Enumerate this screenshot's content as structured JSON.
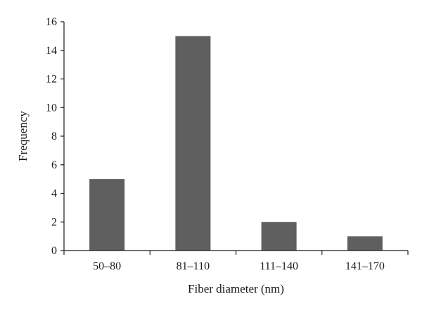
{
  "chart_data": {
    "type": "bar",
    "categories": [
      "50–80",
      "81–110",
      "111–140",
      "141–170"
    ],
    "values": [
      5,
      15,
      2,
      1
    ],
    "title": "",
    "xlabel": "Fiber diameter (nm)",
    "ylabel": "Frequency",
    "ylim": [
      0,
      16
    ],
    "yticks": [
      0,
      2,
      4,
      6,
      8,
      10,
      12,
      14,
      16
    ],
    "grid": false,
    "bar_color": "#5f5f5f",
    "axis_color": "#1a1a1a"
  }
}
